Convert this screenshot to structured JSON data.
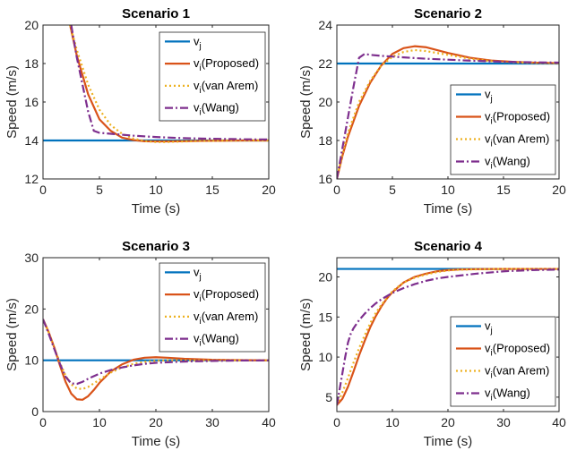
{
  "colors": {
    "vj": "#0072BD",
    "proposed": "#D95319",
    "vanarem": "#EDB120",
    "wang": "#7E2F8E",
    "axis": "#262626",
    "background": "#ffffff"
  },
  "chart_data": [
    {
      "type": "line",
      "title": "Scenario 1",
      "xlabel": "Time (s)",
      "ylabel": "Speed (m/s)",
      "xlim": [
        0,
        20
      ],
      "ylim": [
        12,
        20
      ],
      "xticks": [
        0,
        5,
        10,
        15,
        20
      ],
      "yticks": [
        12,
        14,
        16,
        18,
        20
      ],
      "grid": false,
      "legend_position": "top-right",
      "series": [
        {
          "key": "vj",
          "label_main": "v",
          "label_sub": "j",
          "label_rest": "",
          "style": "solid",
          "x": [
            0,
            20
          ],
          "y": [
            14,
            14
          ]
        },
        {
          "key": "proposed",
          "label_main": "v",
          "label_sub": "i",
          "label_rest": "(Proposed)",
          "style": "solid",
          "x": [
            2.4,
            3,
            4,
            5,
            6,
            7,
            8,
            9,
            10,
            11,
            12,
            14,
            16,
            18,
            20
          ],
          "y": [
            20.0,
            18.4,
            16.4,
            15.1,
            14.5,
            14.15,
            14.02,
            13.96,
            13.95,
            13.95,
            13.96,
            13.98,
            13.99,
            14.0,
            14.0
          ]
        },
        {
          "key": "vanarem",
          "label_main": "v",
          "label_sub": "i",
          "label_rest": "(van Arem)",
          "style": "dotted",
          "x": [
            2.4,
            3,
            4,
            5,
            6,
            7,
            8,
            9,
            10,
            11,
            12,
            14,
            16,
            18,
            20
          ],
          "y": [
            20.0,
            18.7,
            16.9,
            15.6,
            14.8,
            14.35,
            14.1,
            13.97,
            13.92,
            13.92,
            13.94,
            13.97,
            13.99,
            14.0,
            14.0
          ]
        },
        {
          "key": "wang",
          "label_main": "v",
          "label_sub": "i",
          "label_rest": "(Wang)",
          "style": "dashdot",
          "x": [
            2.5,
            3,
            3.5,
            4,
            4.5,
            5,
            6,
            8,
            10,
            12,
            14,
            16,
            18,
            20
          ],
          "y": [
            20.0,
            18.3,
            16.9,
            15.5,
            14.5,
            14.4,
            14.35,
            14.25,
            14.18,
            14.13,
            14.1,
            14.08,
            14.06,
            14.05
          ]
        }
      ]
    },
    {
      "type": "line",
      "title": "Scenario 2",
      "xlabel": "Time (s)",
      "ylabel": "Speed (m/s)",
      "xlim": [
        0,
        20
      ],
      "ylim": [
        16,
        24
      ],
      "xticks": [
        0,
        5,
        10,
        15,
        20
      ],
      "yticks": [
        16,
        18,
        20,
        22,
        24
      ],
      "grid": false,
      "legend_position": "bottom-right",
      "series": [
        {
          "key": "vj",
          "label_main": "v",
          "label_sub": "j",
          "label_rest": "",
          "style": "solid",
          "x": [
            0,
            20
          ],
          "y": [
            22,
            22
          ]
        },
        {
          "key": "proposed",
          "label_main": "v",
          "label_sub": "i",
          "label_rest": "(Proposed)",
          "style": "solid",
          "x": [
            0,
            0.5,
            1,
            2,
            3,
            4,
            5,
            6,
            7,
            8,
            9,
            10,
            12,
            14,
            16,
            18,
            20
          ],
          "y": [
            16.0,
            17.2,
            18.2,
            19.8,
            21.0,
            21.9,
            22.5,
            22.8,
            22.9,
            22.85,
            22.7,
            22.55,
            22.3,
            22.15,
            22.08,
            22.04,
            22.02
          ]
        },
        {
          "key": "vanarem",
          "label_main": "v",
          "label_sub": "i",
          "label_rest": "(van Arem)",
          "style": "dotted",
          "x": [
            0,
            0.5,
            1,
            2,
            3,
            4,
            5,
            6,
            7,
            8,
            9,
            10,
            12,
            14,
            16,
            18,
            20
          ],
          "y": [
            16.0,
            17.3,
            18.4,
            20.0,
            21.1,
            21.9,
            22.35,
            22.6,
            22.7,
            22.65,
            22.55,
            22.45,
            22.25,
            22.12,
            22.06,
            22.03,
            22.02
          ]
        },
        {
          "key": "wang",
          "label_main": "v",
          "label_sub": "i",
          "label_rest": "(Wang)",
          "style": "dashdot",
          "x": [
            0,
            0.5,
            1,
            1.5,
            2,
            2.5,
            3,
            4,
            6,
            8,
            10,
            12,
            14,
            16,
            18,
            20
          ],
          "y": [
            16.0,
            17.6,
            19.2,
            20.8,
            22.3,
            22.5,
            22.45,
            22.4,
            22.32,
            22.25,
            22.2,
            22.15,
            22.11,
            22.08,
            22.06,
            22.05
          ]
        }
      ]
    },
    {
      "type": "line",
      "title": "Scenario 3",
      "xlabel": "Time (s)",
      "ylabel": "Speed (m/s)",
      "xlim": [
        0,
        40
      ],
      "ylim": [
        0,
        30
      ],
      "xticks": [
        0,
        10,
        20,
        30,
        40
      ],
      "yticks": [
        0,
        10,
        20,
        30
      ],
      "grid": false,
      "legend_position": "top-right",
      "series": [
        {
          "key": "vj",
          "label_main": "v",
          "label_sub": "j",
          "label_rest": "",
          "style": "solid",
          "x": [
            0,
            40
          ],
          "y": [
            10,
            10
          ]
        },
        {
          "key": "proposed",
          "label_main": "v",
          "label_sub": "i",
          "label_rest": "(Proposed)",
          "style": "solid",
          "x": [
            0,
            1,
            2,
            3,
            4,
            5,
            6,
            7,
            8,
            9,
            10,
            12,
            14,
            16,
            18,
            20,
            22,
            25,
            30,
            35,
            40
          ],
          "y": [
            18.0,
            15.5,
            12.5,
            9.0,
            5.8,
            3.5,
            2.4,
            2.3,
            3.0,
            4.2,
            5.6,
            7.8,
            9.2,
            10.1,
            10.5,
            10.6,
            10.5,
            10.3,
            10.1,
            10.03,
            10.0
          ]
        },
        {
          "key": "vanarem",
          "label_main": "v",
          "label_sub": "i",
          "label_rest": "(van Arem)",
          "style": "dotted",
          "x": [
            0,
            1,
            2,
            3,
            4,
            5,
            6,
            7,
            8,
            10,
            12,
            14,
            16,
            18,
            20,
            22,
            25,
            30,
            35,
            40
          ],
          "y": [
            18.0,
            15.5,
            12.5,
            9.5,
            7.0,
            5.3,
            4.5,
            4.4,
            4.8,
            6.2,
            7.6,
            8.6,
            9.3,
            9.7,
            9.9,
            10.0,
            10.0,
            10.0,
            10.0,
            10.0
          ]
        },
        {
          "key": "wang",
          "label_main": "v",
          "label_sub": "i",
          "label_rest": "(Wang)",
          "style": "dashdot",
          "x": [
            0,
            1,
            2,
            3,
            4,
            5,
            6,
            7,
            8,
            10,
            12,
            14,
            16,
            18,
            20,
            25,
            30,
            35,
            40
          ],
          "y": [
            18.0,
            15.2,
            12.2,
            9.3,
            6.8,
            5.5,
            5.4,
            5.8,
            6.4,
            7.4,
            8.1,
            8.6,
            9.0,
            9.3,
            9.5,
            9.75,
            9.88,
            9.95,
            9.98
          ]
        }
      ]
    },
    {
      "type": "line",
      "title": "Scenario 4",
      "xlabel": "Time (s)",
      "ylabel": "Speed (m/s)",
      "xlim": [
        0,
        40
      ],
      "ylim": [
        3.2,
        22.4
      ],
      "xticks": [
        0,
        10,
        20,
        30,
        40
      ],
      "yticks": [
        5,
        10,
        15,
        20
      ],
      "grid": false,
      "legend_position": "bottom-right",
      "series": [
        {
          "key": "vj",
          "label_main": "v",
          "label_sub": "j",
          "label_rest": "",
          "style": "solid",
          "x": [
            0,
            40
          ],
          "y": [
            21,
            21
          ]
        },
        {
          "key": "proposed",
          "label_main": "v",
          "label_sub": "i",
          "label_rest": "(Proposed)",
          "style": "solid",
          "x": [
            0,
            1,
            2,
            3,
            4,
            5,
            6,
            7,
            8,
            9,
            10,
            12,
            14,
            16,
            18,
            20,
            22,
            25,
            30,
            35,
            40
          ],
          "y": [
            4.0,
            4.8,
            6.3,
            8.2,
            10.2,
            12.0,
            13.7,
            15.1,
            16.3,
            17.3,
            18.1,
            19.3,
            20.0,
            20.4,
            20.7,
            20.85,
            20.93,
            20.97,
            21.0,
            21.0,
            21.0
          ]
        },
        {
          "key": "vanarem",
          "label_main": "v",
          "label_sub": "i",
          "label_rest": "(van Arem)",
          "style": "dotted",
          "x": [
            0,
            1,
            2,
            3,
            4,
            5,
            6,
            7,
            8,
            10,
            12,
            14,
            16,
            18,
            20,
            22,
            25,
            30,
            35,
            40
          ],
          "y": [
            4.0,
            5.6,
            7.4,
            9.3,
            11.1,
            12.7,
            14.2,
            15.5,
            16.5,
            18.2,
            19.3,
            19.9,
            20.3,
            20.6,
            20.8,
            20.9,
            20.95,
            21.0,
            21.0,
            21.0
          ]
        },
        {
          "key": "wang",
          "label_main": "v",
          "label_sub": "i",
          "label_rest": "(Wang)",
          "style": "dashdot",
          "x": [
            0,
            0.5,
            1,
            1.5,
            2,
            2.5,
            3,
            4,
            5,
            6,
            7,
            8,
            10,
            12,
            14,
            16,
            18,
            20,
            25,
            30,
            35,
            40
          ],
          "y": [
            4.0,
            6.0,
            8.0,
            10.0,
            11.8,
            12.9,
            13.6,
            14.6,
            15.4,
            16.1,
            16.7,
            17.2,
            18.0,
            18.6,
            19.1,
            19.5,
            19.8,
            20.0,
            20.4,
            20.7,
            20.85,
            20.92
          ]
        }
      ]
    }
  ]
}
